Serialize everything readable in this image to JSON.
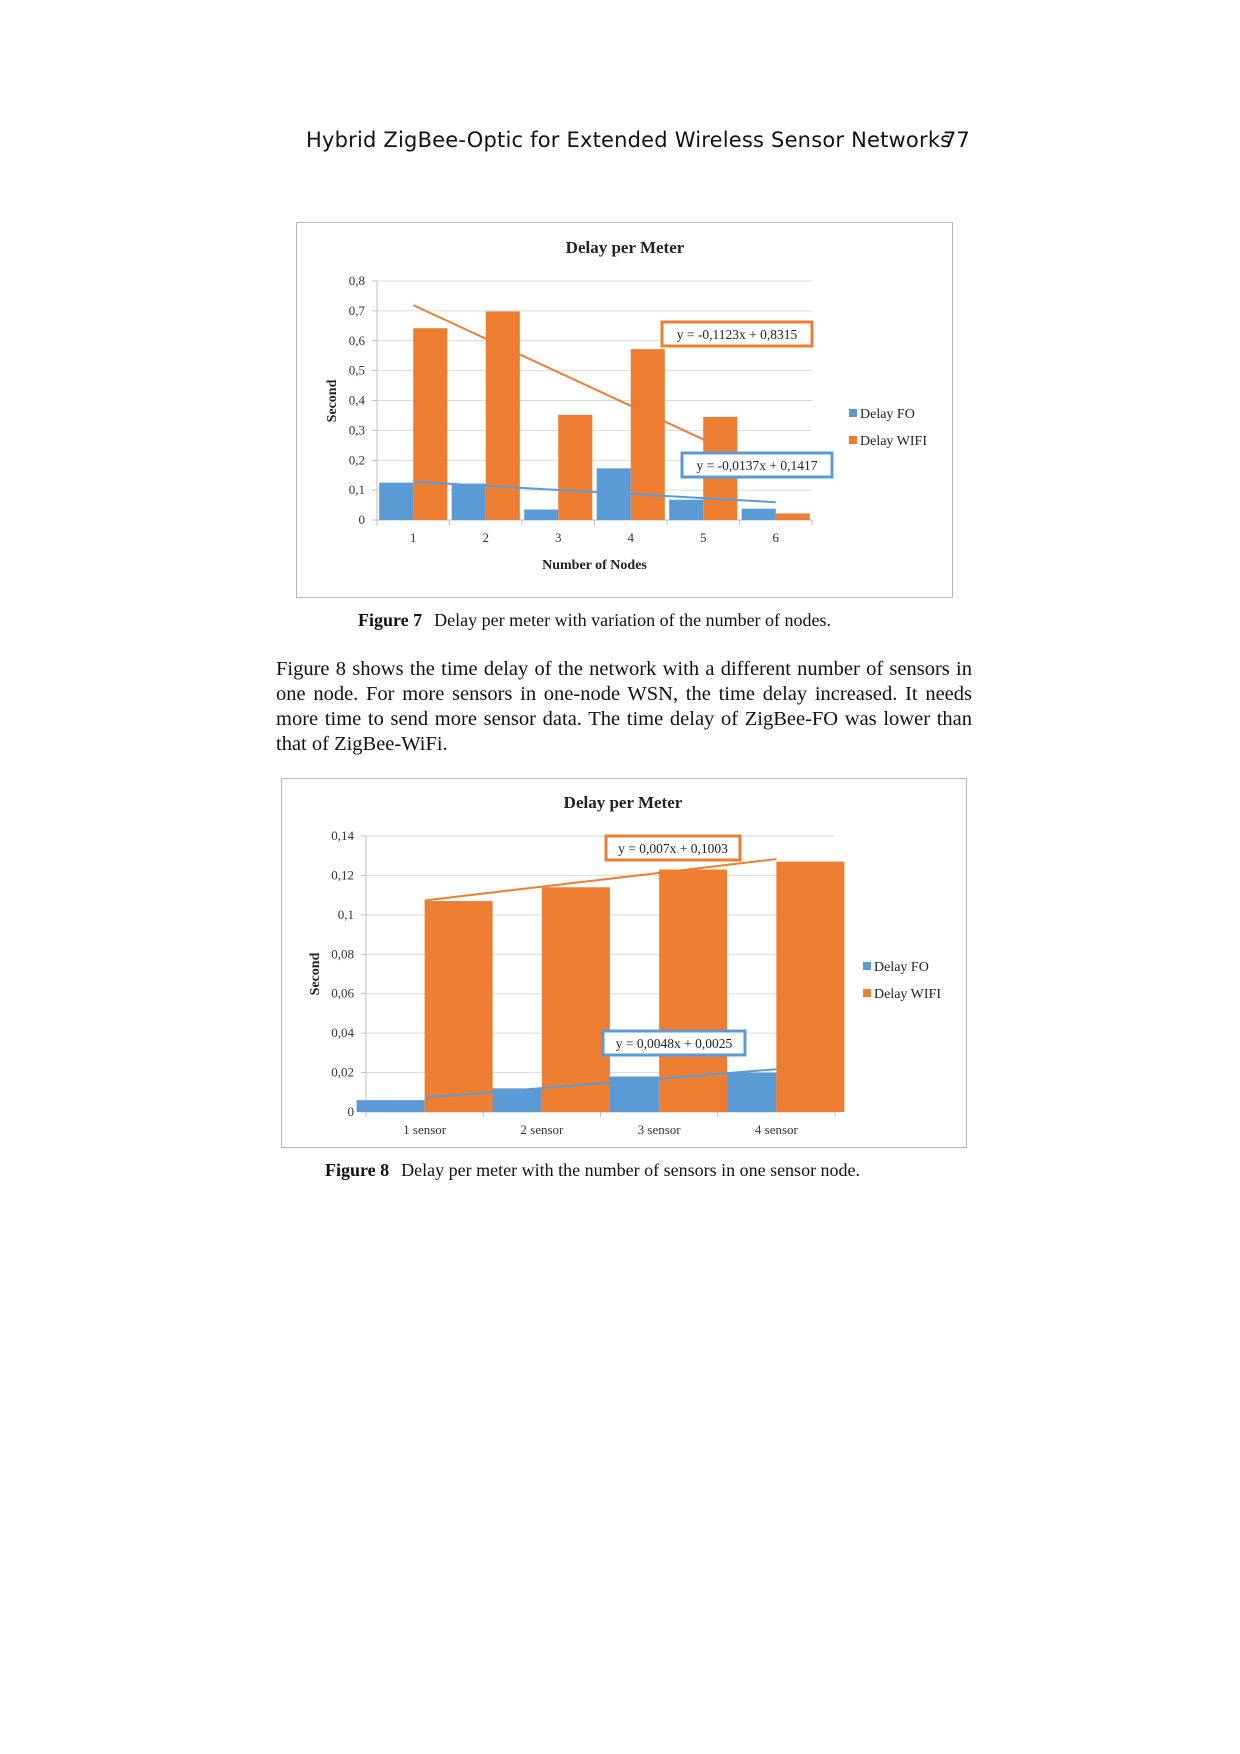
{
  "header": {
    "title": "Hybrid ZigBee-Optic for Extended Wireless Sensor Networks",
    "page_number": "77"
  },
  "figure7": {
    "caption_number": "Figure 7",
    "caption_text": "Delay per meter with variation of the number of nodes."
  },
  "paragraph": "Figure 8 shows the time delay of the network with a different number of sensors in one node. For more sensors in one-node WSN, the time delay increased. It needs more time to send more sensor data. The time delay of ZigBee-FO was lower than that of ZigBee-WiFi.",
  "figure8": {
    "caption_number": "Figure 8",
    "caption_text": "Delay per meter with the number of sensors in one sensor node."
  },
  "colors": {
    "fo": "#5b9bd5",
    "wifi": "#ed7d31",
    "grid": "#d9d9d9",
    "axis": "#bfbfbf"
  },
  "chart_data": [
    {
      "type": "bar",
      "title": "Delay per Meter",
      "xlabel": "Number of Nodes",
      "ylabel": "Second",
      "categories": [
        "1",
        "2",
        "3",
        "4",
        "5",
        "6"
      ],
      "ylim": [
        0,
        0.8
      ],
      "yticks": [
        0,
        0.1,
        0.2,
        0.3,
        0.4,
        0.5,
        0.6,
        0.7,
        0.8
      ],
      "ytick_labels": [
        "0",
        "0,1",
        "0,2",
        "0,3",
        "0,4",
        "0,5",
        "0,6",
        "0,7",
        "0,8"
      ],
      "grid": true,
      "legend": "right",
      "series": [
        {
          "name": "Delay FO",
          "color": "#5b9bd5",
          "values": [
            0.125,
            0.122,
            0.035,
            0.173,
            0.068,
            0.038
          ],
          "trendline": {
            "label": "y = -0,0137x + 0,1417",
            "slope": -0.0137,
            "intercept": 0.1417
          }
        },
        {
          "name": "Delay WIFI",
          "color": "#ed7d31",
          "values": [
            0.642,
            0.698,
            0.352,
            0.572,
            0.345,
            0.022
          ],
          "trendline": {
            "label": "y = -0,1123x + 0,8315",
            "slope": -0.1123,
            "intercept": 0.8315
          }
        }
      ]
    },
    {
      "type": "bar",
      "title": "Delay per Meter",
      "xlabel": "",
      "ylabel": "Second",
      "categories": [
        "1 sensor",
        "2 sensor",
        "3 sensor",
        "4 sensor"
      ],
      "ylim": [
        0,
        0.14
      ],
      "yticks": [
        0,
        0.02,
        0.04,
        0.06,
        0.08,
        0.1,
        0.12,
        0.14
      ],
      "ytick_labels": [
        "0",
        "0,02",
        "0,04",
        "0,06",
        "0,08",
        "0,1",
        "0,12",
        "0,14"
      ],
      "grid": true,
      "legend": "right",
      "series": [
        {
          "name": "Delay FO",
          "color": "#5b9bd5",
          "values": [
            0.006,
            0.012,
            0.018,
            0.02
          ],
          "trendline": {
            "label": "y = 0,0048x + 0,0025",
            "slope": 0.0048,
            "intercept": 0.0025
          }
        },
        {
          "name": "Delay WIFI",
          "color": "#ed7d31",
          "values": [
            0.107,
            0.114,
            0.123,
            0.127
          ],
          "trendline": {
            "label": "y = 0,007x + 0,1003",
            "slope": 0.007,
            "intercept": 0.1003
          }
        }
      ]
    }
  ]
}
